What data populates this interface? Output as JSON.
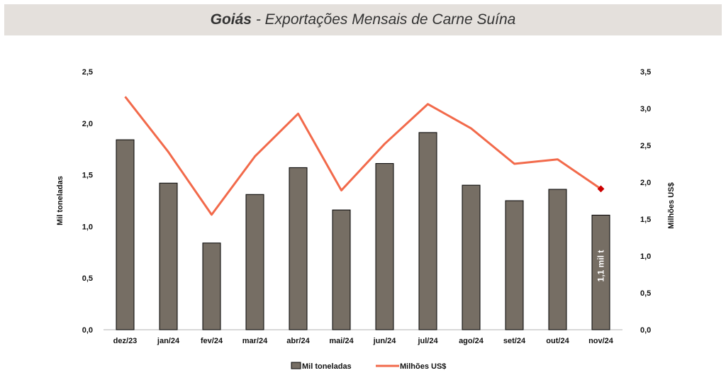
{
  "header": {
    "title_bold": "Goiás",
    "title_rest": " - Exportações Mensais de Carne Suína"
  },
  "chart_data": {
    "type": "bar",
    "categories": [
      "dez/23",
      "jan/24",
      "fev/24",
      "mar/24",
      "abr/24",
      "mai/24",
      "jun/24",
      "jul/24",
      "ago/24",
      "set/24",
      "out/24",
      "nov/24"
    ],
    "series": [
      {
        "name": "Mil toneladas",
        "type": "bar",
        "axis": "left",
        "color": "#766e64",
        "values": [
          1.84,
          1.42,
          0.84,
          1.31,
          1.57,
          1.16,
          1.61,
          1.91,
          1.4,
          1.25,
          1.36,
          1.11
        ]
      },
      {
        "name": "Milhões US$",
        "type": "line",
        "axis": "right",
        "color": "#f26a4b",
        "values": [
          3.16,
          2.41,
          1.56,
          2.35,
          2.93,
          1.89,
          2.52,
          3.06,
          2.73,
          2.25,
          2.31,
          1.91
        ],
        "last_point_marker_color": "#cc0000"
      }
    ],
    "ylabel": "Mil toneladas",
    "y2label": "Milhões US$",
    "ylim": [
      0,
      2.5
    ],
    "y2lim": [
      0,
      3.5
    ],
    "yticks": [
      "0,0",
      "0,5",
      "1,0",
      "1,5",
      "2,0",
      "2,5"
    ],
    "y2ticks": [
      "0,0",
      "0,5",
      "1,0",
      "1,5",
      "2,0",
      "2,5",
      "3,0",
      "3,5"
    ],
    "annotation": "1,1 mil t",
    "grid": false,
    "legend_position": "bottom"
  }
}
